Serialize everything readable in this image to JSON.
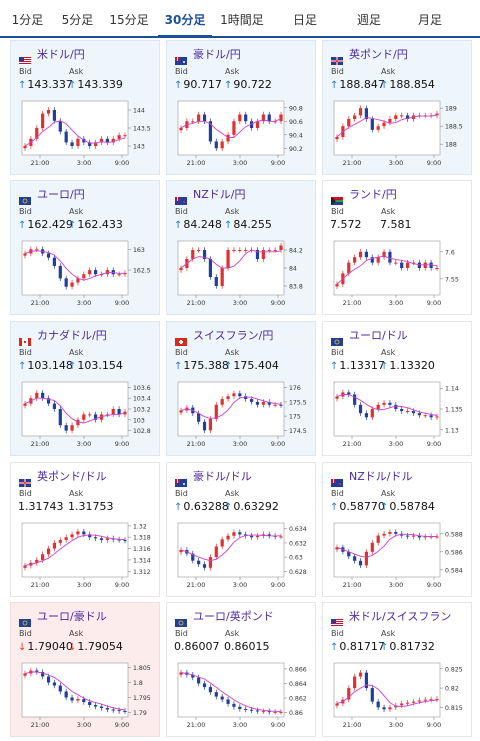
{
  "tabs": [
    {
      "label": "1分足",
      "active": false
    },
    {
      "label": "5分足",
      "active": false
    },
    {
      "label": "15分足",
      "active": false
    },
    {
      "label": "30分足",
      "active": true
    },
    {
      "label": "1時間足",
      "active": false
    },
    {
      "label": "日足",
      "active": false
    },
    {
      "label": "週足",
      "active": false
    },
    {
      "label": "月足",
      "active": false
    }
  ],
  "labels": {
    "bid": "Bid",
    "ask": "Ask"
  },
  "colors": {
    "up": "#e03131",
    "down": "#1f3f9a",
    "ma": "#d13fd1",
    "accent": "#1a4f9c",
    "pair": "#4b2aa0"
  },
  "x_ticks": [
    "21:00",
    "3:00",
    "9:00"
  ],
  "cards": [
    {
      "pair": "米ドル/円",
      "bid": "143.337",
      "ask": "143.339",
      "direction": "up",
      "state": "up",
      "flag": "us",
      "y_ticks": [
        "144",
        "143.5",
        "143"
      ],
      "ylim": [
        142.75,
        144.25
      ]
    },
    {
      "pair": "豪ドル/円",
      "bid": "90.717",
      "ask": "90.722",
      "direction": "up",
      "state": "up",
      "flag": "au",
      "y_ticks": [
        "90.8",
        "90.6",
        "90.4",
        "90.2"
      ],
      "ylim": [
        90.1,
        90.9
      ]
    },
    {
      "pair": "英ポンド/円",
      "bid": "188.847",
      "ask": "188.854",
      "direction": "up",
      "state": "up",
      "flag": "gb",
      "y_ticks": [
        "189",
        "188.5",
        "188"
      ],
      "ylim": [
        187.7,
        189.2
      ]
    },
    {
      "pair": "ユーロ/円",
      "bid": "162.429",
      "ask": "162.433",
      "direction": "up",
      "state": "up",
      "flag": "eu",
      "y_ticks": [
        "163",
        "162.5"
      ],
      "ylim": [
        161.9,
        163.2
      ]
    },
    {
      "pair": "NZドル/円",
      "bid": "84.248",
      "ask": "84.255",
      "direction": "up",
      "state": "up",
      "flag": "nz",
      "y_ticks": [
        "84.2",
        "84",
        "83.8"
      ],
      "ylim": [
        83.7,
        84.3
      ]
    },
    {
      "pair": "ランド/円",
      "bid": "7.572",
      "ask": "7.581",
      "direction": "none",
      "state": "neutral",
      "flag": "za",
      "y_ticks": [
        "7.6",
        "7.55"
      ],
      "ylim": [
        7.52,
        7.62
      ]
    },
    {
      "pair": "カナダドル/円",
      "bid": "103.148",
      "ask": "103.154",
      "direction": "up",
      "state": "up",
      "flag": "ca",
      "y_ticks": [
        "103.6",
        "103.4",
        "103.2",
        "103",
        "102.8"
      ],
      "ylim": [
        102.7,
        103.7
      ]
    },
    {
      "pair": "スイスフラン/円",
      "bid": "175.388",
      "ask": "175.404",
      "direction": "up",
      "state": "up",
      "flag": "ch",
      "y_ticks": [
        "176",
        "175.5",
        "175",
        "174.5"
      ],
      "ylim": [
        174.3,
        176.2
      ]
    },
    {
      "pair": "ユーロ/ドル",
      "bid": "1.13317",
      "ask": "1.13320",
      "direction": "up",
      "state": "neutral",
      "flag": "eu",
      "y_ticks": [
        "1.14",
        "1.135",
        "1.13"
      ],
      "ylim": [
        1.1285,
        1.1415
      ]
    },
    {
      "pair": "英ポンド/ドル",
      "bid": "1.31743",
      "ask": "1.31753",
      "direction": "none",
      "state": "neutral",
      "flag": "gb",
      "y_ticks": [
        "1.32",
        "1.318",
        "1.316",
        "1.314",
        "1.312"
      ],
      "ylim": [
        1.311,
        1.3205
      ]
    },
    {
      "pair": "豪ドル/ドル",
      "bid": "0.63288",
      "ask": "0.63292",
      "direction": "up",
      "state": "neutral",
      "flag": "au",
      "y_ticks": [
        "0.634",
        "0.632",
        "0.63",
        "0.628"
      ],
      "ylim": [
        0.6272,
        0.6348
      ]
    },
    {
      "pair": "NZドル/ドル",
      "bid": "0.58770",
      "ask": "0.58784",
      "direction": "up",
      "state": "neutral",
      "flag": "nz",
      "y_ticks": [
        "0.588",
        "0.586",
        "0.584"
      ],
      "ylim": [
        0.5832,
        0.5892
      ]
    },
    {
      "pair": "ユーロ/豪ドル",
      "bid": "1.79040",
      "ask": "1.79054",
      "direction": "down",
      "state": "down",
      "flag": "eu",
      "y_ticks": [
        "1.805",
        "1.8",
        "1.795",
        "1.79"
      ],
      "ylim": [
        1.7885,
        1.8065
      ]
    },
    {
      "pair": "ユーロ/英ポンド",
      "bid": "0.86007",
      "ask": "0.86015",
      "direction": "none",
      "state": "neutral",
      "flag": "eu",
      "y_ticks": [
        "0.866",
        "0.864",
        "0.862",
        "0.86"
      ],
      "ylim": [
        0.8594,
        0.8668
      ]
    },
    {
      "pair": "米ドル/スイスフラン",
      "bid": "0.81717",
      "ask": "0.81732",
      "direction": "up",
      "state": "neutral",
      "flag": "us",
      "y_ticks": [
        "0.825",
        "0.82",
        "0.815"
      ],
      "ylim": [
        0.8125,
        0.8265
      ]
    }
  ],
  "chart_data": [
    {
      "type": "candlestick",
      "pair": "米ドル/円",
      "xticks": [
        "21:00",
        "3:00",
        "9:00"
      ],
      "ylim": [
        142.75,
        144.25
      ],
      "series": [
        143.0,
        143.2,
        143.5,
        143.9,
        144.0,
        143.7,
        143.4,
        143.1,
        143.0,
        143.2,
        143.1,
        143.0,
        143.1,
        143.2,
        143.1,
        143.2,
        143.3,
        143.3
      ]
    },
    {
      "type": "candlestick",
      "pair": "豪ドル/円",
      "xticks": [
        "21:00",
        "3:00",
        "9:00"
      ],
      "ylim": [
        90.1,
        90.9
      ],
      "series": [
        90.5,
        90.6,
        90.6,
        90.7,
        90.6,
        90.3,
        90.2,
        90.3,
        90.4,
        90.6,
        90.7,
        90.6,
        90.5,
        90.6,
        90.7,
        90.6,
        90.6,
        90.7
      ]
    },
    {
      "type": "candlestick",
      "pair": "英ポンド/円",
      "xticks": [
        "21:00",
        "3:00",
        "9:00"
      ],
      "ylim": [
        187.7,
        189.2
      ],
      "series": [
        188.2,
        188.5,
        188.7,
        188.8,
        189.0,
        188.7,
        188.4,
        188.5,
        188.6,
        188.7,
        188.8,
        188.8,
        188.7,
        188.8,
        188.8,
        188.8,
        188.8,
        188.85
      ]
    },
    {
      "type": "candlestick",
      "pair": "ユーロ/円",
      "xticks": [
        "21:00",
        "3:00",
        "9:00"
      ],
      "ylim": [
        161.9,
        163.2
      ],
      "series": [
        162.9,
        163.0,
        163.0,
        162.9,
        162.8,
        162.6,
        162.3,
        162.1,
        162.2,
        162.3,
        162.4,
        162.5,
        162.4,
        162.4,
        162.5,
        162.4,
        162.4,
        162.43
      ]
    },
    {
      "type": "candlestick",
      "pair": "NZドル/円",
      "xticks": [
        "21:00",
        "3:00",
        "9:00"
      ],
      "ylim": [
        83.7,
        84.3
      ],
      "series": [
        84.0,
        84.1,
        84.2,
        84.2,
        84.1,
        83.9,
        83.8,
        84.0,
        84.2,
        84.2,
        84.2,
        84.2,
        84.2,
        84.1,
        84.2,
        84.2,
        84.2,
        84.25
      ]
    },
    {
      "type": "candlestick",
      "pair": "ランド/円",
      "xticks": [
        "21:00",
        "3:00",
        "9:00"
      ],
      "ylim": [
        7.52,
        7.62
      ],
      "series": [
        7.54,
        7.56,
        7.58,
        7.59,
        7.6,
        7.59,
        7.58,
        7.59,
        7.6,
        7.58,
        7.58,
        7.57,
        7.58,
        7.58,
        7.57,
        7.58,
        7.57,
        7.57
      ]
    },
    {
      "type": "candlestick",
      "pair": "カナダドル/円",
      "xticks": [
        "21:00",
        "3:00",
        "9:00"
      ],
      "ylim": [
        102.7,
        103.7
      ],
      "series": [
        103.3,
        103.4,
        103.5,
        103.4,
        103.3,
        103.2,
        102.9,
        102.8,
        102.9,
        103.0,
        103.1,
        103.1,
        103.0,
        103.1,
        103.1,
        103.2,
        103.1,
        103.15
      ]
    },
    {
      "type": "candlestick",
      "pair": "スイスフラン/円",
      "xticks": [
        "21:00",
        "3:00",
        "9:00"
      ],
      "ylim": [
        174.3,
        176.2
      ],
      "series": [
        175.2,
        175.3,
        175.1,
        174.8,
        174.5,
        174.9,
        175.4,
        175.6,
        175.7,
        175.8,
        175.7,
        175.6,
        175.5,
        175.4,
        175.5,
        175.4,
        175.4,
        175.39
      ]
    },
    {
      "type": "candlestick",
      "pair": "ユーロ/ドル",
      "xticks": [
        "21:00",
        "3:00",
        "9:00"
      ],
      "ylim": [
        1.1285,
        1.1415
      ],
      "series": [
        1.138,
        1.139,
        1.1385,
        1.136,
        1.134,
        1.133,
        1.135,
        1.136,
        1.1365,
        1.136,
        1.135,
        1.1345,
        1.1345,
        1.134,
        1.1335,
        1.1335,
        1.133,
        1.1332
      ]
    },
    {
      "type": "candlestick",
      "pair": "英ポンド/ドル",
      "xticks": [
        "21:00",
        "3:00",
        "9:00"
      ],
      "ylim": [
        1.311,
        1.3205
      ],
      "series": [
        1.313,
        1.3135,
        1.314,
        1.315,
        1.316,
        1.317,
        1.3175,
        1.318,
        1.3185,
        1.319,
        1.3185,
        1.318,
        1.3178,
        1.3175,
        1.3178,
        1.3176,
        1.3175,
        1.3174
      ]
    },
    {
      "type": "candlestick",
      "pair": "豪ドル/ドル",
      "xticks": [
        "21:00",
        "3:00",
        "9:00"
      ],
      "ylim": [
        0.6272,
        0.6348
      ],
      "series": [
        0.631,
        0.6305,
        0.6295,
        0.629,
        0.6285,
        0.63,
        0.6315,
        0.6325,
        0.633,
        0.6335,
        0.6332,
        0.633,
        0.6328,
        0.633,
        0.6332,
        0.633,
        0.6329,
        0.6329
      ]
    },
    {
      "type": "candlestick",
      "pair": "NZドル/ドル",
      "xticks": [
        "21:00",
        "3:00",
        "9:00"
      ],
      "ylim": [
        0.5832,
        0.5892
      ],
      "series": [
        0.5865,
        0.586,
        0.5855,
        0.585,
        0.5845,
        0.586,
        0.587,
        0.5878,
        0.588,
        0.5882,
        0.588,
        0.5878,
        0.5877,
        0.5878,
        0.5876,
        0.5877,
        0.5877,
        0.5877
      ]
    },
    {
      "type": "candlestick",
      "pair": "ユーロ/豪ドル",
      "xticks": [
        "21:00",
        "3:00",
        "9:00"
      ],
      "ylim": [
        1.7885,
        1.8065
      ],
      "series": [
        1.803,
        1.804,
        1.8035,
        1.802,
        1.8,
        1.799,
        1.797,
        1.795,
        1.794,
        1.7945,
        1.7935,
        1.7925,
        1.792,
        1.7915,
        1.791,
        1.7908,
        1.7905,
        1.7904
      ]
    },
    {
      "type": "candlestick",
      "pair": "ユーロ/英ポンド",
      "xticks": [
        "21:00",
        "3:00",
        "9:00"
      ],
      "ylim": [
        0.8594,
        0.8668
      ],
      "series": [
        0.8655,
        0.8652,
        0.8648,
        0.864,
        0.8635,
        0.8628,
        0.8622,
        0.8618,
        0.8612,
        0.8608,
        0.8605,
        0.8604,
        0.8603,
        0.8602,
        0.8602,
        0.8601,
        0.8601,
        0.8601
      ]
    },
    {
      "type": "candlestick",
      "pair": "米ドル/スイスフラン",
      "xticks": [
        "21:00",
        "3:00",
        "9:00"
      ],
      "ylim": [
        0.8125,
        0.8265
      ],
      "series": [
        0.816,
        0.817,
        0.82,
        0.823,
        0.824,
        0.82,
        0.8165,
        0.815,
        0.8145,
        0.815,
        0.8155,
        0.816,
        0.8162,
        0.8165,
        0.8168,
        0.817,
        0.8171,
        0.8172
      ]
    }
  ]
}
